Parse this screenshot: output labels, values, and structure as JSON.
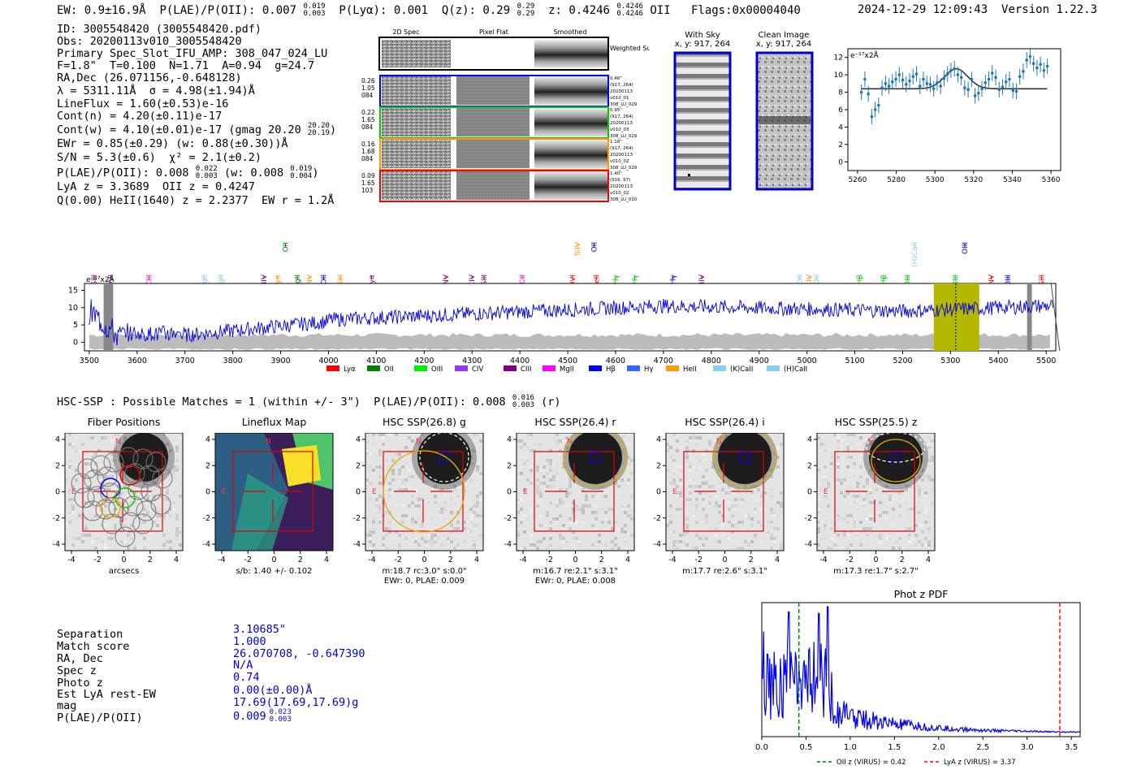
{
  "header": {
    "ew": "EW: 0.9±16.9Å",
    "plae_label": "P(LAE)/P(OII): 0.007",
    "plae_sup": "0.019",
    "plae_sub": "0.003",
    "plya": "P(Lyα): 0.001",
    "qz_label": "Q(z): 0.29",
    "qz_sup": "0.29",
    "qz_sub": "0.29",
    "z_label": "z: 0.4246",
    "z_sup": "0.4246",
    "z_sub": "0.4246",
    "z_line": "OII",
    "flags": "Flags:0x00004040",
    "datetime": "2024-12-29 12:09:43",
    "version": "Version 1.22.3"
  },
  "info": {
    "id": "ID: 3005548420 (3005548420.pdf)",
    "obs": "Obs: 20200113v010_3005548420",
    "primary": "Primary Spec_Slot_IFU_AMP: 308_047_024_LU",
    "fwhm": "F=1.8\"  T=0.100  N=1.71  A=0.94  g=24.7",
    "radec": "RA,Dec (26.071156,-0.648128)",
    "lambda": "λ = 5311.11Å  σ = 4.98(±1.94)Å",
    "lineflux": "LineFlux = 1.60(±0.53)e-16",
    "contn": "Cont(n) = 4.20(±0.11)e-17",
    "contw": "Cont(w) = 4.10(±0.01)e-17 (gmag 20.20",
    "contw_sup": "20.20",
    "contw_sub": "20.19",
    "contw_close": ")",
    "ewr": "EWr = 0.85(±0.29) (w: 0.88(±0.30))Å",
    "sn": "S/N = 5.3(±0.6)  χ² = 2.1(±0.2)",
    "plae2": "P(LAE)/P(OII): 0.008",
    "plae2_sup": "0.022",
    "plae2_sub": "0.003",
    "plae2_w": "(w: 0.008",
    "plae2_w_sup": "0.019",
    "plae2_w_sub": "0.004",
    "plae2_close": ")",
    "lya": "LyA z = 3.3689  OII z = 0.4247",
    "heii": "Q(0.00) HeII(1640) z = 2.2377  EW r = 1.2Å"
  },
  "cutouts": {
    "col_headers": [
      "2D Spec",
      "Pixel Flat",
      "Smoothed"
    ],
    "weighted_sum": "Weighted Sum",
    "rows": [
      {
        "left": [
          "0.26",
          "1.05",
          "084"
        ],
        "right": [
          "0.46\"",
          "(917, 264)",
          "20200113",
          "v010_01",
          "308_LU_029"
        ],
        "color": "#0000ff"
      },
      {
        "left": [
          "0.22",
          "1.65",
          "084"
        ],
        "right": [
          "0.95\"",
          "(917, 264)",
          "20200113",
          "v010_03",
          "308_LU_029"
        ],
        "color": "#00cc00"
      },
      {
        "left": [
          "0.16",
          "1.68",
          "084"
        ],
        "right": [
          "1.18\"",
          "(917, 264)",
          "20200113",
          "v010_02",
          "308_LU_029"
        ],
        "color": "#ff9900"
      },
      {
        "left": [
          "0.09",
          "1.65",
          "103"
        ],
        "right": [
          "1.40\"",
          "(916, 97)",
          "20200113",
          "v010_02",
          "308_LU_010"
        ],
        "color": "#ff0000"
      }
    ],
    "with_sky": "With Sky",
    "with_sky_xy": "x, y: 917, 264",
    "clean_image": "Clean Image",
    "clean_xy": "x, y: 917, 264"
  },
  "zoom_plot": {
    "ylabel": "e⁻¹⁷x2Å",
    "x_ticks": [
      "5260",
      "5280",
      "5300",
      "5320",
      "5340",
      "5360"
    ],
    "y_ticks": [
      "0",
      "2",
      "4",
      "6",
      "8",
      "10",
      "12"
    ]
  },
  "spectrum": {
    "ylabel": "e⁻¹⁷x2Å",
    "x_ticks": [
      "3500",
      "3600",
      "3700",
      "3800",
      "3900",
      "4000",
      "4100",
      "4200",
      "4300",
      "4400",
      "4500",
      "4600",
      "4700",
      "4800",
      "4900",
      "5000",
      "5100",
      "5200",
      "5300",
      "5400",
      "5500"
    ],
    "y_ticks": [
      "0",
      "5",
      "10",
      "15"
    ],
    "line_labels": [
      {
        "t": "SiII",
        "c": "#800080"
      },
      {
        "t": "OVI",
        "c": "#800080"
      },
      {
        "t": "CIII",
        "c": "#ff00ff"
      },
      {
        "t": "MgII",
        "c": "#87ceeb"
      },
      {
        "t": "MgII",
        "c": "#87ceeb"
      },
      {
        "t": "SiIV",
        "c": "#800080"
      },
      {
        "t": "Lyα",
        "c": "#ff9900"
      },
      {
        "t": "OII",
        "c": "#008000"
      },
      {
        "t": "MgII",
        "c": "#008000"
      },
      {
        "t": "NV",
        "c": "#ff9900"
      },
      {
        "t": "OII",
        "c": "#0000ff"
      },
      {
        "t": "SiII",
        "c": "#ff9900"
      },
      {
        "t": "Lyα",
        "c": "#800080"
      },
      {
        "t": "NV",
        "c": "#800080"
      },
      {
        "t": "CIV",
        "c": "#800080"
      },
      {
        "t": "SiII",
        "c": "#800080"
      },
      {
        "t": "CII",
        "c": "#ff00ff"
      },
      {
        "t": "OVI",
        "c": "#ff0000"
      },
      {
        "t": "SiIV",
        "c": "#ff9900"
      },
      {
        "t": "OII",
        "c": "#0000ff"
      },
      {
        "t": "HeII",
        "c": "#ff0000"
      },
      {
        "t": "Hγ",
        "c": "#00cc00"
      },
      {
        "t": "Hγ",
        "c": "#00cc00"
      },
      {
        "t": "Hγ",
        "c": "#0000ff"
      },
      {
        "t": "SiIV",
        "c": "#800080"
      },
      {
        "t": "OII",
        "c": "#87ceeb"
      },
      {
        "t": "CIV",
        "c": "#ff9900"
      },
      {
        "t": "OII",
        "c": "#87ceeb"
      },
      {
        "t": "Hβ",
        "c": "#00cc00"
      },
      {
        "t": "Hβ",
        "c": "#00cc00"
      },
      {
        "t": "OIII",
        "c": "#00cc00"
      },
      {
        "t": "(H)CaII",
        "c": "#87ceeb"
      },
      {
        "t": "OIII",
        "c": "#00cc00"
      },
      {
        "t": "OIII",
        "c": "#0000ff"
      },
      {
        "t": "NV",
        "c": "#ff0000"
      },
      {
        "t": "OIII",
        "c": "#0000ff"
      },
      {
        "t": "SiII",
        "c": "#ff0000"
      }
    ],
    "legend": [
      {
        "label": "Lyα",
        "color": "#ff0000"
      },
      {
        "label": "OII",
        "color": "#008000"
      },
      {
        "label": "OIII",
        "color": "#00ee00"
      },
      {
        "label": "CIV",
        "color": "#9933ff"
      },
      {
        "label": "CIII",
        "color": "#800080"
      },
      {
        "label": "MgII",
        "color": "#ff00ff"
      },
      {
        "label": "Hβ",
        "color": "#0000ff"
      },
      {
        "label": "Hγ",
        "color": "#3366ff"
      },
      {
        "label": "HeII",
        "color": "#ff9900"
      },
      {
        "label": "(K)CaII",
        "color": "#87ceeb"
      },
      {
        "label": "(H)CaII",
        "color": "#87ceeb"
      }
    ]
  },
  "hsc": {
    "summary": "HSC-SSP : Possible Matches = 1 (within +/- 3\")  P(LAE)/P(OII): 0.008",
    "summary_sup": "0.016",
    "summary_sub": "0.003",
    "summary_tail": "(r)",
    "panels": [
      {
        "title": "Fiber Positions",
        "cap1": "arcsecs",
        "cap2": ""
      },
      {
        "title": "Lineflux Map",
        "cap1": "s/b: 1.40 +/- 0.102",
        "cap2": ""
      },
      {
        "title": "HSC SSP(26.8) g",
        "cap1": "m:18.7 rc:3.0\"  s:0.0\"",
        "cap2": "EWr: 0, PLAE: 0.009"
      },
      {
        "title": "HSC SSP(26.4) r",
        "cap1": "m:16.7  re:2.1\"  s:3.1\"",
        "cap2": "EWr: 0, PLAE: 0.008"
      },
      {
        "title": "HSC SSP(26.4) i",
        "cap1": "m:17.7  re:2.6\"  s:3.1\"",
        "cap2": ""
      },
      {
        "title": "HSC SSP(25.5) z",
        "cap1": "m:17.3  re:1.7\"  s:2.7\"",
        "cap2": ""
      }
    ],
    "axis_ticks": [
      "-4",
      "-2",
      "0",
      "2",
      "4"
    ],
    "n_label": "N",
    "e_label": "E"
  },
  "stats": {
    "labels": [
      "Separation",
      "Match score",
      "RA, Dec",
      "Spec z",
      "Photo z",
      "Est LyA rest-EW",
      "mag",
      "P(LAE)/P(OII)"
    ],
    "values": [
      "3.10685\"",
      "1.000",
      "26.070708, -0.647390",
      "N/A",
      "0.74",
      "0.00(±0.00)Å",
      "17.69(17.69,17.69)g",
      "0.009"
    ],
    "plae_sup": "0.023",
    "plae_sub": "0.003"
  },
  "photz": {
    "title": "Phot z PDF",
    "x_ticks": [
      "0.0",
      "0.5",
      "1.0",
      "1.5",
      "2.0",
      "2.5",
      "3.0",
      "3.5"
    ],
    "legend_oii": "OII z (VIRUS) = 0.42",
    "legend_lya": "LyA z (VIRUS) = 3.37",
    "oii_z": 0.42,
    "lya_z": 3.37
  },
  "colors": {
    "blue": "#0000ff",
    "navy_text": "#0000dd",
    "olive": "#b5b800",
    "grey_band": "#b0b0b0"
  }
}
